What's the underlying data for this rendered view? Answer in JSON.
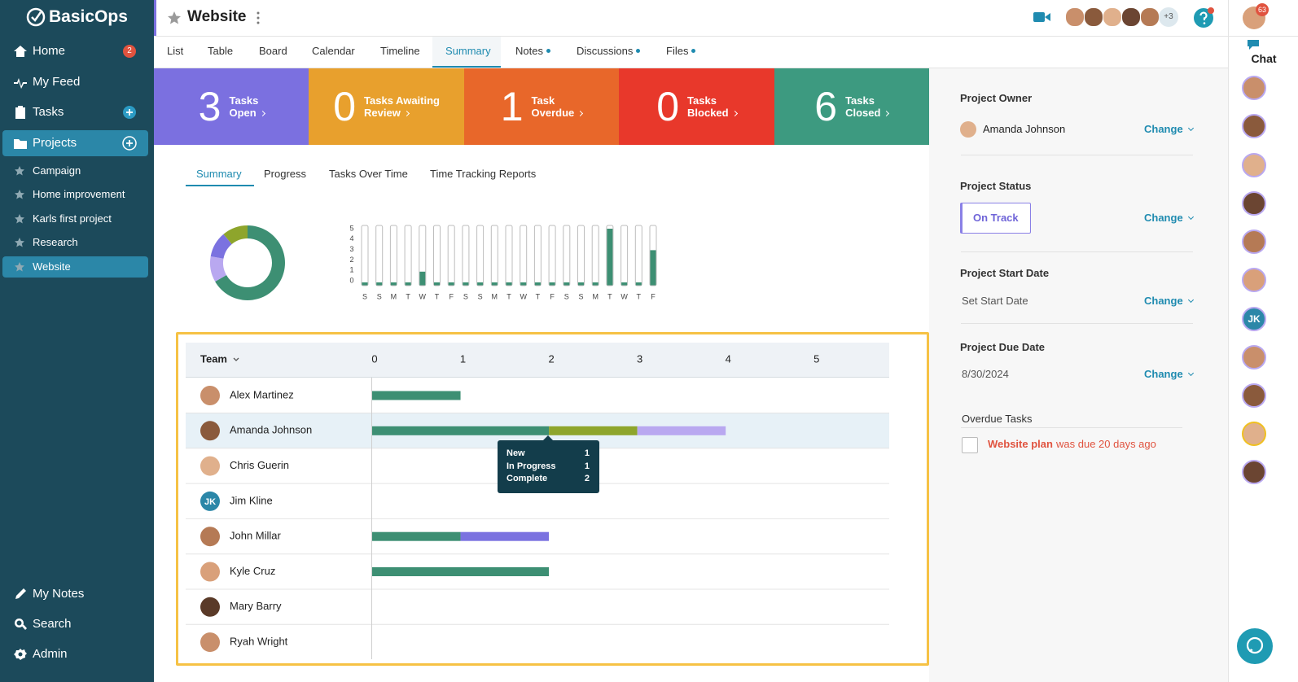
{
  "sidebar": {
    "logo": "BasicOps",
    "nav": [
      {
        "label": "Home",
        "badge": 2
      },
      {
        "label": "My Feed"
      },
      {
        "label": "Tasks"
      },
      {
        "label": "Projects"
      }
    ],
    "projects": [
      "Campaign",
      "Home improvement",
      "Karls first project",
      "Research",
      "Website"
    ],
    "footer": [
      "My Notes",
      "Search",
      "Admin"
    ]
  },
  "header": {
    "title": "Website",
    "more_members": "+3",
    "notification_count": 63,
    "chat": "Chat"
  },
  "tabs": [
    {
      "label": "List"
    },
    {
      "label": "Table"
    },
    {
      "label": "Board"
    },
    {
      "label": "Calendar"
    },
    {
      "label": "Timeline"
    },
    {
      "label": "Summary"
    },
    {
      "label": "Notes",
      "dot": true
    },
    {
      "label": "Discussions",
      "dot": true
    },
    {
      "label": "Files",
      "dot": true
    }
  ],
  "stats": [
    {
      "count": 3,
      "label": [
        "Tasks",
        "Open"
      ],
      "color": "#7b70e0"
    },
    {
      "count": 0,
      "label": [
        "Tasks Awaiting",
        "Review"
      ],
      "color": "#e8a02d"
    },
    {
      "count": 1,
      "label": [
        "Task",
        "Overdue"
      ],
      "color": "#e8672a"
    },
    {
      "count": 0,
      "label": [
        "Tasks",
        "Blocked"
      ],
      "color": "#e8382b"
    },
    {
      "count": 6,
      "label": [
        "Tasks",
        "Closed"
      ],
      "color": "#3d9a80"
    }
  ],
  "report_tabs": [
    "Summary",
    "Progress",
    "Tasks Over Time",
    "Time Tracking Reports"
  ],
  "status_donut": {
    "type": "pie",
    "values": [
      6,
      1,
      1,
      1
    ],
    "colors": [
      "#3d8f73",
      "#b9a8f0",
      "#7b72e0",
      "#8ea52c"
    ]
  },
  "daily_chart": {
    "type": "bar",
    "categories": [
      "S",
      "S",
      "M",
      "T",
      "W",
      "T",
      "F",
      "S",
      "S",
      "M",
      "T",
      "W",
      "T",
      "F",
      "S",
      "S",
      "M",
      "T",
      "W",
      "T",
      "F"
    ],
    "values": [
      0,
      0,
      0,
      0,
      1,
      0,
      0,
      0,
      0,
      0,
      0,
      0,
      0,
      0,
      0,
      0,
      0,
      5,
      0,
      0,
      3
    ],
    "ylim": [
      0,
      5
    ],
    "yticks": [
      0,
      1,
      2,
      3,
      4,
      5
    ],
    "color": "#3d8f73"
  },
  "team_chart": {
    "type": "bar",
    "header": "Team",
    "categories": [
      "Alex Martinez",
      "Amanda Johnson",
      "Chris Guerin",
      "Jim Kline",
      "John Millar",
      "Kyle Cruz",
      "Mary Barry",
      "Ryah Wright"
    ],
    "initials": [
      null,
      null,
      null,
      "JK",
      null,
      null,
      null,
      null
    ],
    "xlim": [
      0,
      5.85
    ],
    "xticks": [
      0,
      1,
      2,
      3,
      4,
      5
    ],
    "series": [
      {
        "color": "#3d8f73",
        "values": [
          1,
          2,
          0,
          0,
          1,
          2,
          0,
          0
        ]
      },
      {
        "color": "#8ea52c",
        "values": [
          0,
          1,
          0,
          0,
          0,
          0,
          0,
          0
        ]
      },
      {
        "color": "#b9a8f0",
        "values": [
          0,
          1,
          0,
          0,
          0,
          0,
          0,
          0
        ]
      },
      {
        "color": "#7b72e0",
        "values": [
          0,
          0,
          0,
          0,
          1,
          0,
          0,
          0
        ]
      }
    ],
    "tooltip": [
      {
        "label": "New",
        "value": 1
      },
      {
        "label": "In Progress",
        "value": 1
      },
      {
        "label": "Complete",
        "value": 2
      }
    ]
  },
  "details": {
    "owner_label": "Project Owner",
    "owner": "Amanda Johnson",
    "status_label": "Project Status",
    "status": "On Track",
    "start_label": "Project Start Date",
    "start": "Set Start Date",
    "due_label": "Project Due Date",
    "due": "8/30/2024",
    "change": "Change",
    "overdue_label": "Overdue Tasks",
    "overdue_task": "Website plan",
    "overdue_note": "was due 20 days ago"
  },
  "chat_avatars": [
    null,
    null,
    null,
    null,
    null,
    null,
    "JK",
    null,
    null,
    null,
    null
  ]
}
